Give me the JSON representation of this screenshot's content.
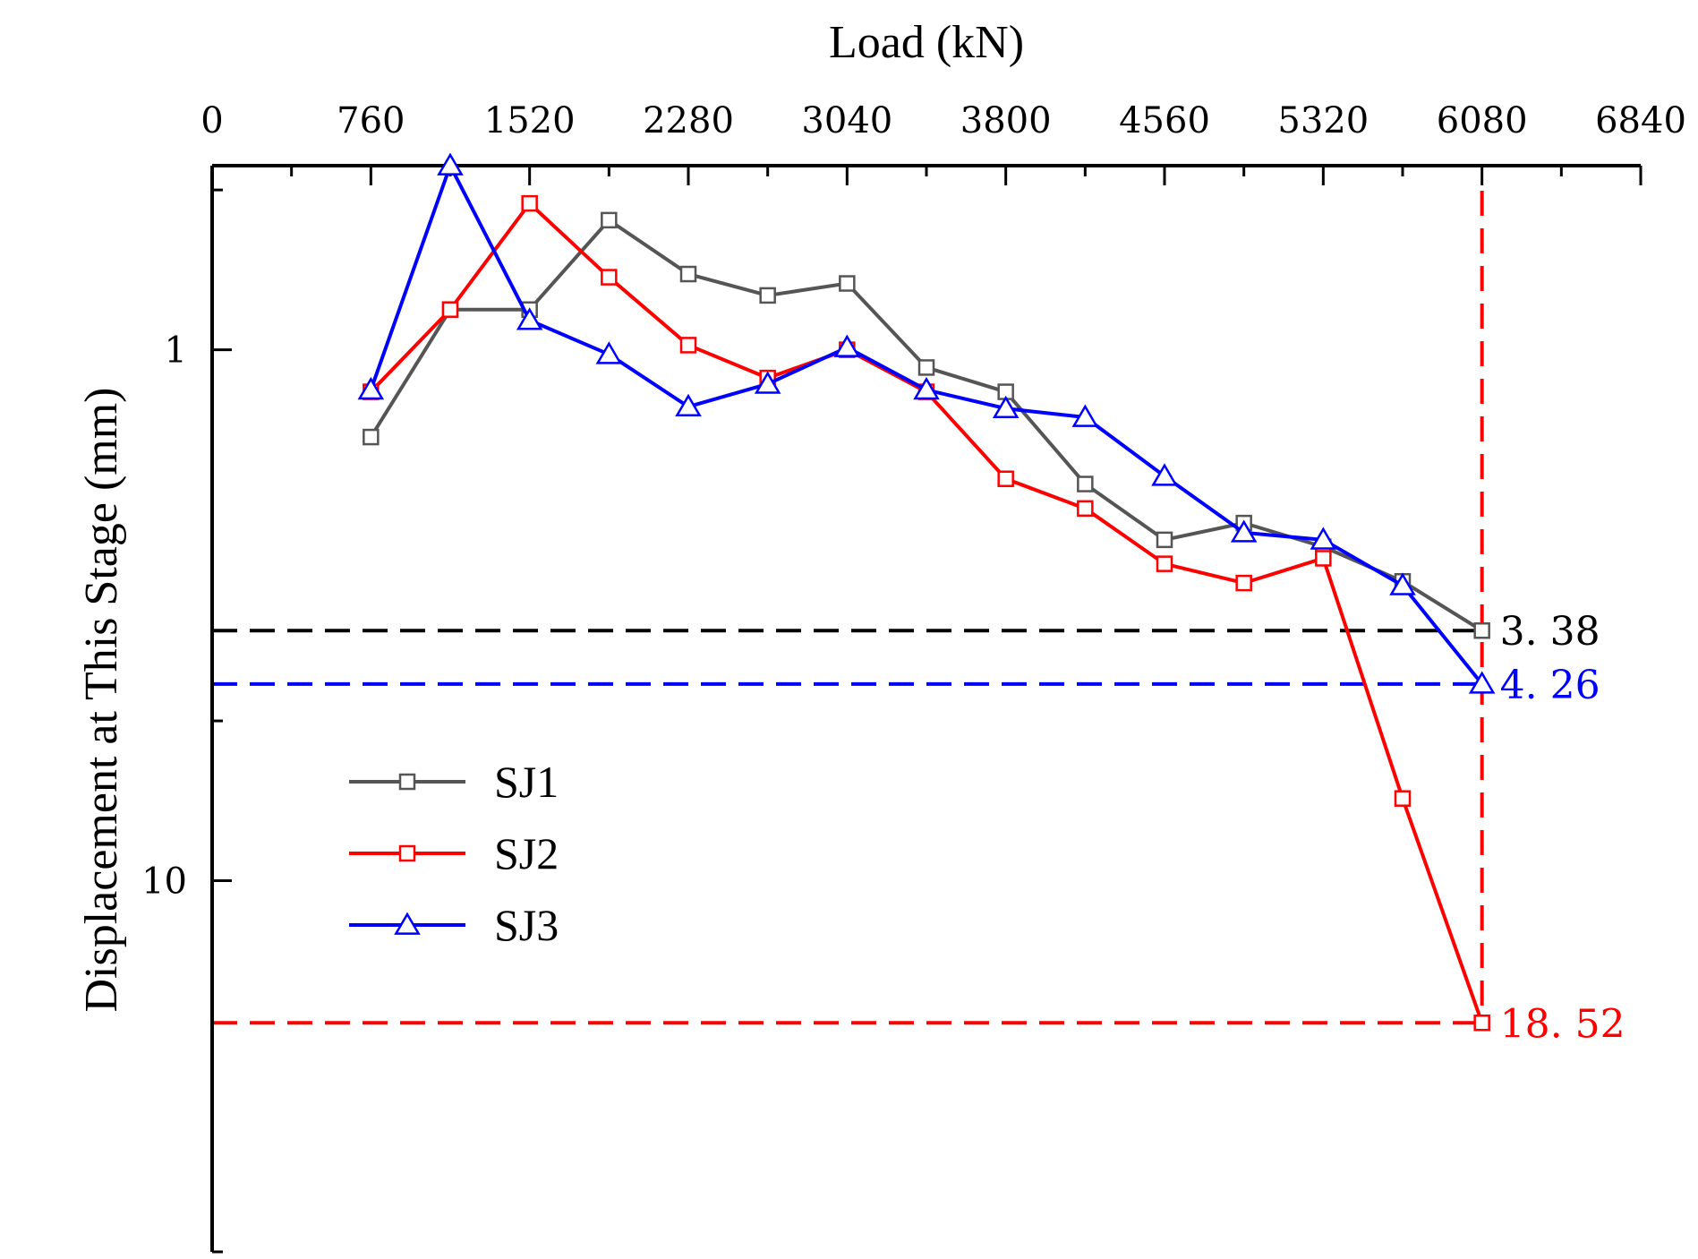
{
  "chart_data": {
    "type": "line",
    "xlabel": "Load (kN)",
    "ylabel": "Displacement at This Stage (mm)",
    "x_axis_position": "top",
    "y_axis_inverted": true,
    "y_scale": "log",
    "xlim": [
      0,
      6840
    ],
    "ylim": [
      0.45,
      50
    ],
    "x_ticks": [
      0,
      760,
      1520,
      2280,
      3040,
      3800,
      4560,
      5320,
      6080,
      6840
    ],
    "y_ticks": [
      1,
      10
    ],
    "y_tick_labels": [
      "1",
      "10"
    ],
    "x": [
      760,
      1140,
      1520,
      1900,
      2280,
      2660,
      3040,
      3420,
      3800,
      4180,
      4560,
      4940,
      5320,
      5700,
      6080
    ],
    "series": [
      {
        "name": "SJ1",
        "color": "#555555",
        "marker": "square",
        "values": [
          1.46,
          0.84,
          0.84,
          0.57,
          0.72,
          0.79,
          0.75,
          1.08,
          1.2,
          1.79,
          2.28,
          2.12,
          2.35,
          2.73,
          3.38
        ]
      },
      {
        "name": "SJ2",
        "color": "#ff0000",
        "marker": "square",
        "values": [
          1.2,
          0.84,
          0.53,
          0.73,
          0.98,
          1.13,
          1.0,
          1.2,
          1.75,
          1.99,
          2.53,
          2.75,
          2.47,
          7.0,
          18.52
        ]
      },
      {
        "name": "SJ3",
        "color": "#0000ff",
        "marker": "triangle",
        "values": [
          1.19,
          0.45,
          0.88,
          1.02,
          1.28,
          1.16,
          0.99,
          1.19,
          1.29,
          1.34,
          1.73,
          2.21,
          2.28,
          2.78,
          4.26
        ]
      }
    ],
    "reference_lines": [
      {
        "series": "SJ1",
        "value": 3.38,
        "label": "3. 38",
        "color": "#000000"
      },
      {
        "series": "SJ3",
        "value": 4.26,
        "label": "4. 26",
        "color": "#0000ff"
      },
      {
        "series": "SJ2",
        "value": 18.52,
        "label": "18. 52",
        "color": "#ff0000"
      }
    ],
    "vertical_reference": {
      "x": 6080,
      "color": "#ff0000"
    },
    "legend": {
      "placement": "lower-left",
      "entries": [
        "SJ1",
        "SJ2",
        "SJ3"
      ]
    },
    "grid": false
  }
}
